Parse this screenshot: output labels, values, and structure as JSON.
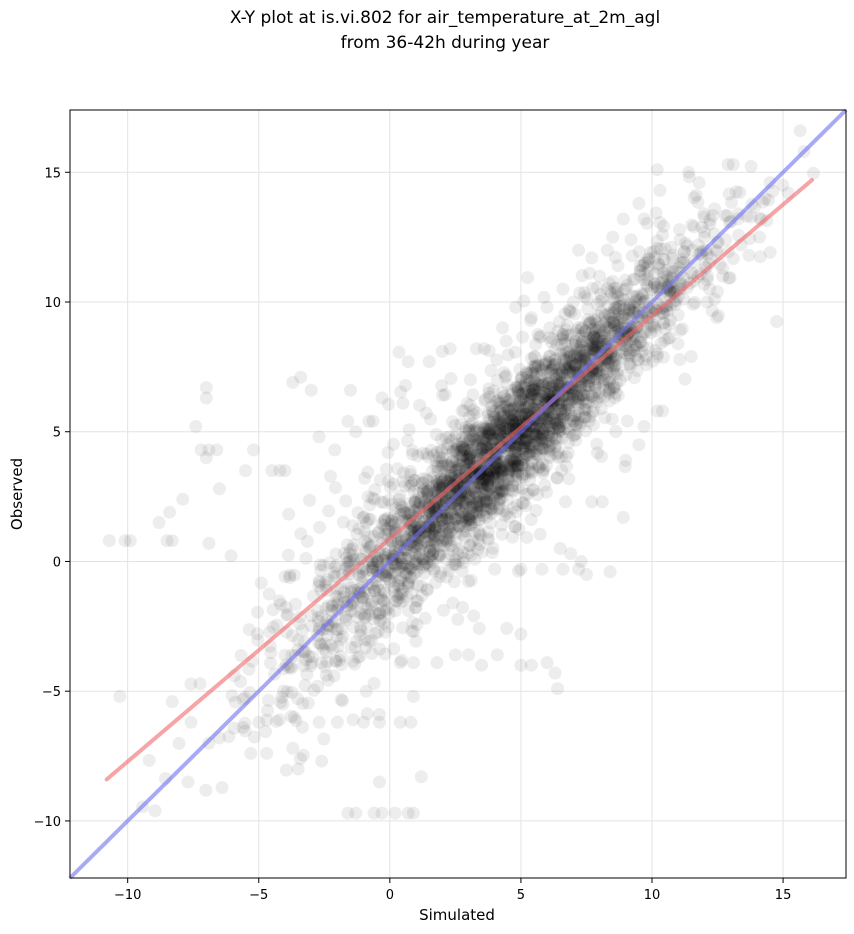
{
  "chart_data": {
    "type": "scatter",
    "title": "X-Y plot at is.vi.802 for air_temperature_at_2m_agl",
    "subtitle": "from 36-42h during year",
    "xlabel": "Simulated",
    "ylabel": "Observed",
    "xlim": [
      -12.2,
      17.4
    ],
    "ylim": [
      -12.2,
      17.4
    ],
    "xticks": [
      -10,
      -5,
      0,
      5,
      10,
      15
    ],
    "yticks": [
      -10,
      -5,
      0,
      5,
      10,
      15
    ],
    "xtick_labels": [
      "−10",
      "−5",
      "0",
      "5",
      "10",
      "15"
    ],
    "ytick_labels": [
      "−10",
      "−5",
      "0",
      "5",
      "10",
      "15"
    ],
    "grid": true,
    "point_color": "#000000",
    "point_opacity": 0.07,
    "points": [
      [
        -10.7,
        0.8
      ],
      [
        -10.1,
        0.8
      ],
      [
        -9.9,
        0.8
      ],
      [
        -8.8,
        1.5
      ],
      [
        -8.5,
        0.8
      ],
      [
        -8.3,
        0.8
      ],
      [
        -8.4,
        1.9
      ],
      [
        -7.9,
        2.4
      ],
      [
        -7.4,
        5.2
      ],
      [
        -7.2,
        4.3
      ],
      [
        -7.0,
        6.7
      ],
      [
        -7.0,
        6.3
      ],
      [
        -6.9,
        4.3
      ],
      [
        -6.6,
        4.3
      ],
      [
        -7.0,
        4.0
      ],
      [
        -6.9,
        0.7
      ],
      [
        -6.5,
        2.8
      ],
      [
        -5.5,
        3.5
      ],
      [
        -5.2,
        4.3
      ],
      [
        -4.5,
        3.5
      ],
      [
        -4.2,
        3.5
      ],
      [
        -4.0,
        3.5
      ],
      [
        -3.7,
        6.9
      ],
      [
        -3.4,
        7.1
      ],
      [
        -3.0,
        6.6
      ],
      [
        -1.5,
        6.6
      ],
      [
        -2.7,
        4.8
      ],
      [
        -2.1,
        4.3
      ],
      [
        -1.6,
        5.4
      ],
      [
        -1.3,
        5.0
      ],
      [
        -0.8,
        5.4
      ],
      [
        -0.3,
        6.3
      ],
      [
        0.5,
        6.1
      ],
      [
        0.7,
        7.7
      ],
      [
        1.5,
        7.7
      ],
      [
        2.0,
        8.1
      ],
      [
        2.3,
        8.2
      ],
      [
        3.3,
        8.2
      ],
      [
        3.6,
        8.2
      ],
      [
        4.3,
        9.0
      ],
      [
        4.8,
        9.8
      ],
      [
        -10.3,
        -5.2
      ],
      [
        -8.3,
        -5.4
      ],
      [
        -7.7,
        -8.5
      ],
      [
        -6.5,
        -6.8
      ],
      [
        -6.9,
        -7.0
      ],
      [
        -5.6,
        -6.4
      ],
      [
        -5.0,
        -6.2
      ],
      [
        -4.2,
        -6.1
      ],
      [
        -3.7,
        -7.2
      ],
      [
        -3.5,
        -8.0
      ],
      [
        -2.6,
        -7.7
      ],
      [
        -2.7,
        -6.2
      ],
      [
        -2.0,
        -6.2
      ],
      [
        -1.4,
        -6.1
      ],
      [
        -1.3,
        -9.7
      ],
      [
        -1.6,
        -9.7
      ],
      [
        -1.0,
        -6.2
      ],
      [
        -0.9,
        -5.0
      ],
      [
        -0.4,
        -5.9
      ],
      [
        -0.4,
        -6.2
      ],
      [
        0.4,
        -6.2
      ],
      [
        0.8,
        -6.2
      ],
      [
        0.9,
        -5.2
      ],
      [
        -0.4,
        -8.5
      ],
      [
        -0.6,
        -9.7
      ],
      [
        -0.3,
        -9.7
      ],
      [
        0.2,
        -9.7
      ],
      [
        0.7,
        -9.7
      ],
      [
        0.9,
        -9.7
      ],
      [
        1.2,
        -8.3
      ],
      [
        -0.6,
        -4.7
      ],
      [
        0.4,
        -3.9
      ],
      [
        0.9,
        -3.9
      ],
      [
        1.8,
        -3.9
      ],
      [
        2.5,
        -3.6
      ],
      [
        3.0,
        -3.6
      ],
      [
        3.5,
        -4.0
      ],
      [
        4.1,
        -3.6
      ],
      [
        5.0,
        -2.8
      ],
      [
        5.0,
        -4.0
      ],
      [
        5.4,
        -4.0
      ],
      [
        6.0,
        -3.9
      ],
      [
        6.3,
        -4.3
      ],
      [
        6.4,
        -4.9
      ],
      [
        3.2,
        -2.1
      ],
      [
        2.4,
        -1.6
      ],
      [
        4.0,
        -0.3
      ],
      [
        5.0,
        -0.3
      ],
      [
        5.8,
        -0.3
      ],
      [
        6.6,
        -0.3
      ],
      [
        7.2,
        -0.3
      ],
      [
        7.5,
        -0.5
      ],
      [
        8.4,
        -0.4
      ],
      [
        6.5,
        0.5
      ],
      [
        6.9,
        0.3
      ],
      [
        7.3,
        0.0
      ],
      [
        8.9,
        1.7
      ],
      [
        8.1,
        2.3
      ],
      [
        7.7,
        2.3
      ],
      [
        6.7,
        2.3
      ],
      [
        9.0,
        3.9
      ],
      [
        9.5,
        4.5
      ],
      [
        9.7,
        5.2
      ],
      [
        10.2,
        5.8
      ],
      [
        10.4,
        5.8
      ],
      [
        11.5,
        7.9
      ],
      [
        12.2,
        10.5
      ],
      [
        12.7,
        11.0
      ],
      [
        13.3,
        13.4
      ],
      [
        13.7,
        11.8
      ],
      [
        14.1,
        12.5
      ],
      [
        13.1,
        15.3
      ],
      [
        12.9,
        15.3
      ],
      [
        14.5,
        14.6
      ],
      [
        15.2,
        14.2
      ],
      [
        15.8,
        15.8
      ],
      [
        11.4,
        15.0
      ],
      [
        11.8,
        14.6
      ],
      [
        10.2,
        15.1
      ],
      [
        10.3,
        14.3
      ],
      [
        9.5,
        13.8
      ],
      [
        9.7,
        13.2
      ],
      [
        8.9,
        13.2
      ],
      [
        9.2,
        12.4
      ],
      [
        8.5,
        12.5
      ],
      [
        8.3,
        12.0
      ],
      [
        7.2,
        12.0
      ],
      [
        8.7,
        11.4
      ],
      [
        7.7,
        11.7
      ],
      [
        8.0,
        11.0
      ],
      [
        6.6,
        10.5
      ],
      [
        7.0,
        10.0
      ],
      [
        6.0,
        9.8
      ],
      [
        5.4,
        9.4
      ],
      [
        6.1,
        9.0
      ],
      [
        12.0,
        12.7
      ],
      [
        11.6,
        12.9
      ],
      [
        12.2,
        13.0
      ],
      [
        12.5,
        12.3
      ],
      [
        13.4,
        12.2
      ],
      [
        12.7,
        11.3
      ],
      [
        11.6,
        10.8
      ],
      [
        12.1,
        10.0
      ],
      [
        12.5,
        10.4
      ],
      [
        11.0,
        9.5
      ],
      [
        11.0,
        10.2
      ],
      [
        10.4,
        9.8
      ]
    ],
    "red_fit_line": {
      "color": "#f0686a",
      "x": [
        -10.8,
        16.1
      ],
      "y": [
        -8.4,
        14.7
      ]
    },
    "blue_identity_line": {
      "color": "#7070f0",
      "x": [
        -12.2,
        17.4
      ],
      "y": [
        -12.2,
        17.4
      ]
    }
  }
}
